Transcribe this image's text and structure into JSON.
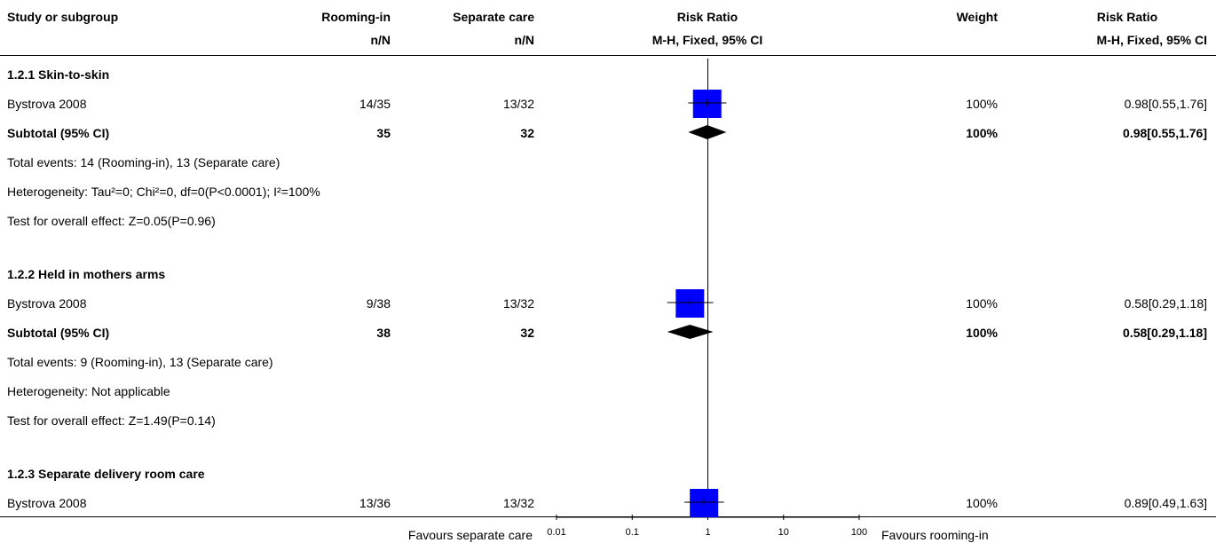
{
  "header": {
    "study_or_subgroup": "Study or subgroup",
    "group1": "Rooming-in",
    "group1_sub": "n/N",
    "group2": "Separate care",
    "group2_sub": "n/N",
    "effect": "Risk Ratio",
    "effect_sub": "M-H, Fixed, 95% CI",
    "weight": "Weight",
    "effect2": "Risk Ratio",
    "effect2_sub": "M-H, Fixed, 95% CI"
  },
  "subgroups": [
    {
      "title": "1.2.1 Skin-to-skin",
      "study": {
        "name": "Bystrova 2008",
        "g1": "14/35",
        "g2": "13/32",
        "weight": "100%",
        "ci_text": "0.98[0.55,1.76]"
      },
      "subtotal": {
        "label": "Subtotal (95% CI)",
        "g1": "35",
        "g2": "32",
        "weight": "100%",
        "ci_text": "0.98[0.55,1.76]"
      },
      "notes": [
        "Total events: 14 (Rooming-in), 13 (Separate care)",
        "Heterogeneity: Tau²=0; Chi²=0, df=0(P<0.0001); I²=100%",
        "Test for overall effect: Z=0.05(P=0.96)"
      ]
    },
    {
      "title": "1.2.2 Held in mothers arms",
      "study": {
        "name": "Bystrova 2008",
        "g1": "9/38",
        "g2": "13/32",
        "weight": "100%",
        "ci_text": "0.58[0.29,1.18]"
      },
      "subtotal": {
        "label": "Subtotal (95% CI)",
        "g1": "38",
        "g2": "32",
        "weight": "100%",
        "ci_text": "0.58[0.29,1.18]"
      },
      "notes": [
        "Total events: 9 (Rooming-in), 13 (Separate care)",
        "Heterogeneity: Not applicable",
        "Test for overall effect: Z=1.49(P=0.14)"
      ]
    },
    {
      "title": "1.2.3 Separate delivery room care",
      "study": {
        "name": "Bystrova 2008",
        "g1": "13/36",
        "g2": "13/32",
        "weight": "100%",
        "ci_text": "0.89[0.49,1.63]"
      }
    }
  ],
  "axis": {
    "left_label": "Favours separate care",
    "right_label": "Favours rooming-in",
    "ticks": [
      "0.01",
      "0.1",
      "1",
      "10",
      "100"
    ]
  },
  "colors": {
    "study_box": "#0000ff",
    "diamond": "#000000",
    "line": "#000000"
  },
  "chart_data": {
    "type": "forest",
    "scale": "log",
    "xlim": [
      0.01,
      100
    ],
    "xticks": [
      0.01,
      0.1,
      1,
      10,
      100
    ],
    "reference_line": 1,
    "rows": [
      {
        "kind": "study",
        "subgroup": "1.2.1 Skin-to-skin",
        "name": "Bystrova 2008",
        "estimate": 0.98,
        "lower": 0.55,
        "upper": 1.76,
        "weight": 100
      },
      {
        "kind": "subtotal",
        "subgroup": "1.2.1 Skin-to-skin",
        "estimate": 0.98,
        "lower": 0.55,
        "upper": 1.76
      },
      {
        "kind": "study",
        "subgroup": "1.2.2 Held in mothers arms",
        "name": "Bystrova 2008",
        "estimate": 0.58,
        "lower": 0.29,
        "upper": 1.18,
        "weight": 100
      },
      {
        "kind": "subtotal",
        "subgroup": "1.2.2 Held in mothers arms",
        "estimate": 0.58,
        "lower": 0.29,
        "upper": 1.18
      },
      {
        "kind": "study",
        "subgroup": "1.2.3 Separate delivery room care",
        "name": "Bystrova 2008",
        "estimate": 0.89,
        "lower": 0.49,
        "upper": 1.63,
        "weight": 100
      }
    ]
  }
}
